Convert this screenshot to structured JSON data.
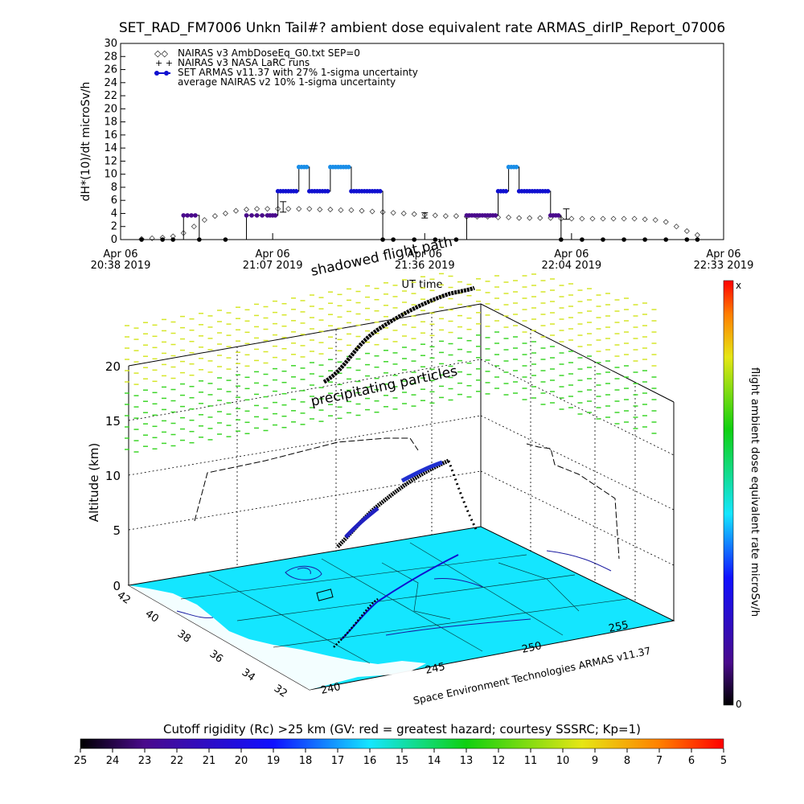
{
  "title": "SET_RAD_FM7006  Unkn Tail#? ambient dose equivalent rate ARMAS_dirIP_Report_07006",
  "colors": {
    "armas": "#1010d0",
    "armas_peak": "#1a8ee8",
    "armas_low": "#4a0a8c",
    "nairas_v3": "#404040",
    "surface": "#14e6ff",
    "particles_high": "#d6e62a",
    "particles_low": "#3ed62a"
  },
  "chart_data": [
    {
      "type": "line",
      "title": "",
      "xlabel": "UT time",
      "ylabel": "dH*(10)/dt microSv/h",
      "ylim": [
        0,
        30
      ],
      "yticks": [
        "0",
        "2",
        "4",
        "6",
        "8",
        "10",
        "12",
        "14",
        "16",
        "18",
        "20",
        "22",
        "24",
        "26",
        "28",
        "30"
      ],
      "xlim_minutes": [
        0,
        115
      ],
      "xticks": [
        {
          "minute": 0,
          "date": "Apr 06",
          "time": "20:38 2019"
        },
        {
          "minute": 29,
          "date": "Apr 06",
          "time": "21:07 2019"
        },
        {
          "minute": 58,
          "date": "Apr 06",
          "time": "21:36 2019"
        },
        {
          "minute": 86,
          "date": "Apr 06",
          "time": "22:04 2019"
        },
        {
          "minute": 115,
          "date": "Apr 06",
          "time": "22:33 2019"
        }
      ],
      "legend_position": "top-left",
      "legend": [
        "NAIRAS v3 AmbDoseEq_G0.txt SEP=0",
        "NAIRAS v3 NASA LaRC runs",
        "SET ARMAS v11.37 with 27% 1-sigma uncertainty",
        "average NAIRAS v2 10% 1-sigma uncertainty"
      ],
      "series": [
        {
          "name": "NAIRAS v3 AmbDoseEq_G0.txt SEP=0",
          "x": [
            4,
            6,
            8,
            10,
            12,
            14,
            16,
            18,
            20,
            22,
            24,
            26,
            28,
            30,
            32,
            34,
            36,
            38,
            40,
            42,
            44,
            46,
            48,
            50,
            52,
            54,
            56,
            58,
            60,
            62,
            64,
            66,
            68,
            70,
            72,
            74,
            76,
            78,
            80,
            82,
            84,
            86,
            88,
            90,
            92,
            94,
            96,
            98,
            100,
            102,
            104,
            106,
            108,
            110
          ],
          "values": [
            0.1,
            0.2,
            0.3,
            0.5,
            1.0,
            2.0,
            3.0,
            3.6,
            4.0,
            4.4,
            4.6,
            4.7,
            4.7,
            4.7,
            4.7,
            4.7,
            4.7,
            4.6,
            4.6,
            4.5,
            4.5,
            4.4,
            4.3,
            4.2,
            4.1,
            4.0,
            3.9,
            3.8,
            3.7,
            3.6,
            3.6,
            3.5,
            3.5,
            3.5,
            3.4,
            3.4,
            3.3,
            3.3,
            3.3,
            3.3,
            3.2,
            3.2,
            3.2,
            3.2,
            3.2,
            3.2,
            3.2,
            3.2,
            3.1,
            3.0,
            2.7,
            2.0,
            1.3,
            0.7
          ]
        },
        {
          "name": "SET ARMAS v11.37 with 27% 1-sigma uncertainty",
          "x": [
            4,
            8,
            10,
            12,
            15,
            20,
            24,
            28,
            30,
            32,
            34,
            36,
            38,
            40,
            42,
            44,
            46,
            48,
            50,
            52,
            56,
            60,
            64,
            66,
            68,
            70,
            72,
            74,
            76,
            78,
            80,
            82,
            84,
            88,
            92,
            96,
            100,
            104,
            108,
            110
          ],
          "values": [
            0,
            0,
            0,
            3.7,
            0,
            0,
            3.7,
            3.7,
            7.4,
            7.4,
            11.1,
            7.4,
            7.4,
            11.1,
            11.1,
            7.4,
            7.4,
            7.4,
            0,
            0,
            0,
            0,
            0,
            3.7,
            3.7,
            3.7,
            7.4,
            11.1,
            7.4,
            7.4,
            7.4,
            3.7,
            0,
            0,
            0,
            0,
            0,
            0,
            0,
            0
          ]
        }
      ],
      "error_bars": [
        {
          "x": 31,
          "y": 5.0,
          "err": 0.8
        },
        {
          "x": 58,
          "y": 3.7,
          "err": 0.4
        },
        {
          "x": 85,
          "y": 3.9,
          "err": 0.8
        }
      ]
    },
    {
      "type": "scatter",
      "title": "",
      "annotations": [
        "shadowed flight path",
        "precipitating particles"
      ],
      "ylabel": "Altitude (km)",
      "zticks": [
        "0",
        "5",
        "10",
        "15",
        "20"
      ],
      "latitude_ticks": [
        "42",
        "40",
        "38",
        "36",
        "34",
        "32"
      ],
      "longitude_ticks": [
        "240",
        "245",
        "250",
        "255"
      ],
      "credit": "Space Environment Technologies ARMAS v11.37",
      "colorbar_label": "flight ambient dose equivalent rate microSv/h",
      "colorbar_min_label": "0",
      "colorbar_max_label": "x",
      "flight_path": {
        "lon": [
          241.5,
          242.5,
          243.5,
          244.5,
          245.5,
          246.5,
          247.5,
          248.5,
          249.5,
          250.5
        ],
        "lat": [
          35.5,
          36.3,
          37.0,
          37.6,
          38.1,
          38.6,
          39.0,
          39.4,
          39.8,
          40.1
        ],
        "alt_km": [
          1.0,
          3.0,
          5.5,
          7.5,
          8.8,
          9.5,
          10.0,
          10.2,
          10.5,
          10.8
        ]
      }
    },
    {
      "type": "heatmap",
      "colorbar_label": "Cutoff rigidity (Rc) >25 km (GV: red = greatest hazard; courtesy SSSRC; Kp=1)",
      "ticks": [
        "25",
        "24",
        "23",
        "22",
        "21",
        "20",
        "19",
        "18",
        "17",
        "16",
        "15",
        "14",
        "13",
        "12",
        "11",
        "10",
        "9",
        "8",
        "7",
        "6",
        "5"
      ]
    }
  ]
}
